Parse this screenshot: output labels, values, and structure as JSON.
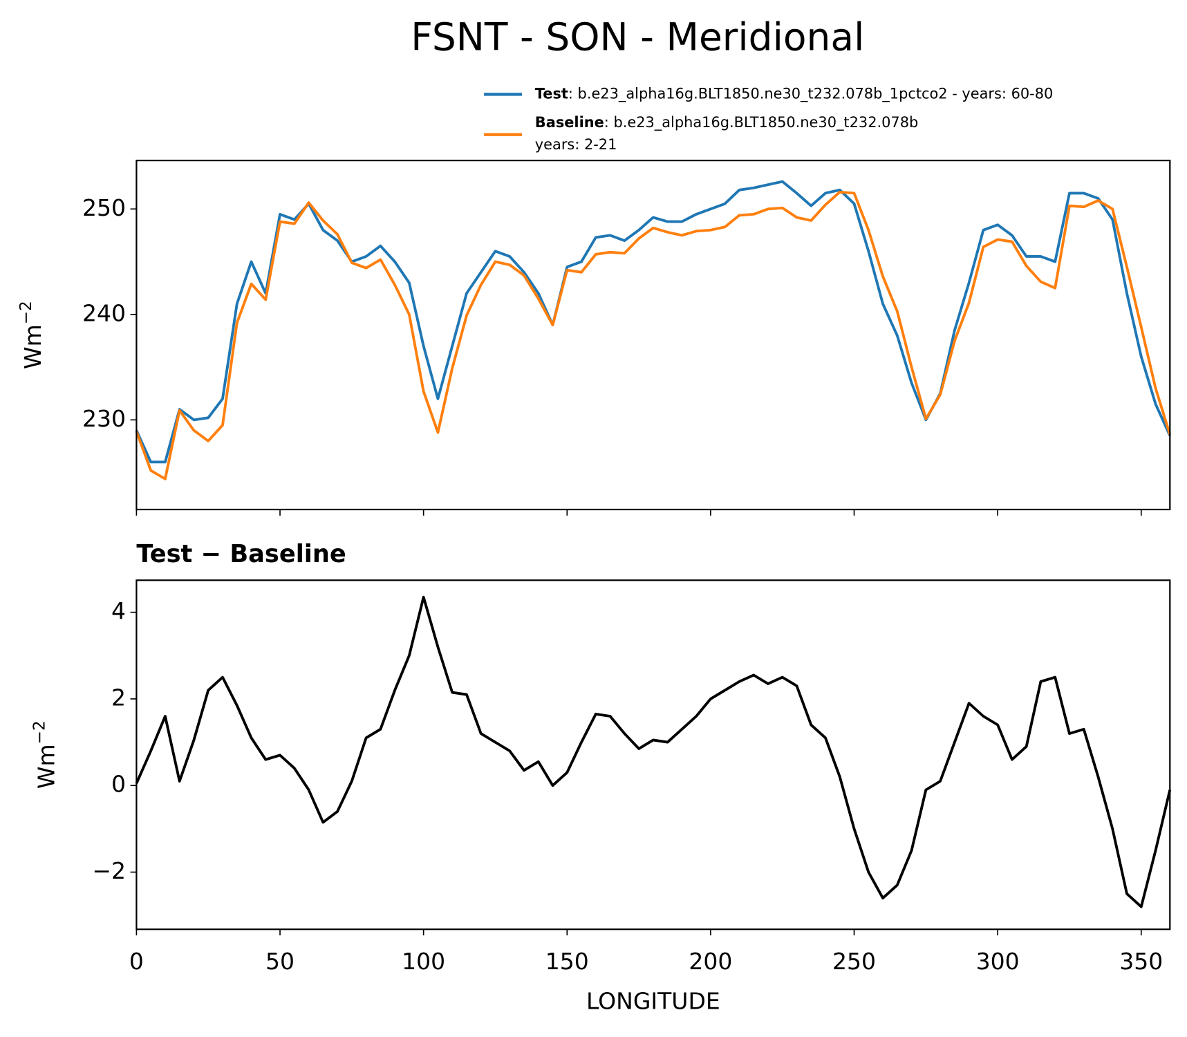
{
  "title": "FSNT - SON - Meridional",
  "chart_data": [
    {
      "type": "line",
      "ylabel": {
        "base": "Wm",
        "superscript": "−2"
      },
      "x": [
        0,
        5,
        10,
        15,
        20,
        25,
        30,
        35,
        40,
        45,
        50,
        55,
        60,
        65,
        70,
        75,
        80,
        85,
        90,
        95,
        100,
        105,
        110,
        115,
        120,
        125,
        130,
        135,
        140,
        145,
        150,
        155,
        160,
        165,
        170,
        175,
        180,
        185,
        190,
        195,
        200,
        205,
        210,
        215,
        220,
        225,
        230,
        235,
        240,
        245,
        250,
        255,
        260,
        265,
        270,
        275,
        280,
        285,
        290,
        295,
        300,
        305,
        310,
        315,
        320,
        325,
        330,
        335,
        340,
        345,
        350,
        355,
        360
      ],
      "xlim": [
        0,
        360
      ],
      "xticks": [
        0,
        50,
        100,
        150,
        200,
        250,
        300,
        350
      ],
      "xticklabels": false,
      "ylim": [
        221.5,
        254.6
      ],
      "yticks": [
        230,
        240,
        250
      ],
      "series": [
        {
          "name": "Test",
          "description": [
            ": b.e23_alpha16g.BLT1850.ne30_t232.078b_1pctco2 - years: 60-80"
          ],
          "color": "#1f77b4",
          "values": [
            229,
            226,
            226,
            231,
            230,
            230.2,
            232,
            241,
            245,
            242,
            249.5,
            249,
            250.5,
            248,
            247,
            245,
            245.5,
            246.5,
            245,
            243,
            237,
            232,
            237,
            242,
            244,
            246,
            245.5,
            244,
            242,
            239,
            244.5,
            245,
            247.3,
            247.5,
            247,
            248,
            249.2,
            248.8,
            248.8,
            249.5,
            250,
            250.5,
            251.8,
            252,
            252.3,
            252.6,
            251.5,
            250.3,
            251.5,
            251.8,
            250.5,
            246,
            241,
            238,
            233.5,
            230,
            232.5,
            238.5,
            243,
            248,
            248.5,
            247.5,
            245.5,
            245.5,
            245,
            251.5,
            251.5,
            251,
            249,
            242,
            236,
            231.5,
            228.5
          ]
        },
        {
          "name": "Baseline",
          "description": [
            ": b.e23_alpha16g.BLT1850.ne30_t232.078b",
            "years: 2-21"
          ],
          "color": "#ff7f0e",
          "values": [
            228.9,
            225.2,
            224.4,
            230.9,
            229.0,
            228.0,
            229.5,
            239.2,
            242.9,
            241.4,
            248.8,
            248.6,
            250.6,
            248.9,
            247.6,
            244.9,
            244.4,
            245.2,
            242.8,
            240.0,
            232.7,
            228.8,
            234.9,
            239.9,
            242.8,
            245.0,
            244.7,
            243.7,
            241.5,
            239.0,
            244.2,
            244.0,
            245.7,
            245.9,
            245.8,
            247.2,
            248.2,
            247.8,
            247.5,
            247.9,
            248.0,
            248.3,
            249.4,
            249.5,
            250.0,
            250.1,
            249.2,
            248.9,
            250.4,
            251.6,
            251.5,
            248.0,
            243.6,
            240.3,
            235.0,
            230.1,
            232.4,
            237.5,
            241.1,
            246.4,
            247.1,
            246.9,
            244.6,
            243.1,
            242.5,
            250.3,
            250.2,
            250.8,
            250.0,
            244.5,
            238.8,
            233.0,
            228.6
          ]
        }
      ]
    },
    {
      "type": "line",
      "title": "Test − Baseline",
      "ylabel": {
        "base": "Wm",
        "superscript": "−2"
      },
      "xlabel": "LONGITUDE",
      "x": [
        0,
        5,
        10,
        15,
        20,
        25,
        30,
        35,
        40,
        45,
        50,
        55,
        60,
        65,
        70,
        75,
        80,
        85,
        90,
        95,
        100,
        105,
        110,
        115,
        120,
        125,
        130,
        135,
        140,
        145,
        150,
        155,
        160,
        165,
        170,
        175,
        180,
        185,
        190,
        195,
        200,
        205,
        210,
        215,
        220,
        225,
        230,
        235,
        240,
        245,
        250,
        255,
        260,
        265,
        270,
        275,
        280,
        285,
        290,
        295,
        300,
        305,
        310,
        315,
        320,
        325,
        330,
        335,
        340,
        345,
        350,
        355,
        360
      ],
      "xlim": [
        0,
        360
      ],
      "xticks": [
        0,
        50,
        100,
        150,
        200,
        250,
        300,
        350
      ],
      "xticklabels": true,
      "ylim": [
        -3.32,
        4.74
      ],
      "yticks": [
        {
          "value": -2,
          "label": "−2"
        },
        0,
        2,
        4
      ],
      "series": [
        {
          "color": "#000000",
          "values": [
            0.05,
            0.8,
            1.6,
            0.1,
            1.05,
            2.2,
            2.5,
            1.85,
            1.1,
            0.6,
            0.7,
            0.4,
            -0.1,
            -0.85,
            -0.6,
            0.1,
            1.1,
            1.3,
            2.2,
            3.0,
            4.35,
            3.2,
            2.15,
            2.1,
            1.2,
            1.0,
            0.8,
            0.35,
            0.55,
            0.0,
            0.3,
            1.0,
            1.65,
            1.6,
            1.2,
            0.85,
            1.05,
            1.0,
            1.3,
            1.6,
            2.0,
            2.2,
            2.4,
            2.55,
            2.35,
            2.5,
            2.3,
            1.4,
            1.1,
            0.2,
            -1.0,
            -2.0,
            -2.6,
            -2.3,
            -1.5,
            -0.1,
            0.1,
            1.0,
            1.9,
            1.6,
            1.4,
            0.6,
            0.9,
            2.4,
            2.5,
            1.2,
            1.3,
            0.2,
            -1.0,
            -2.5,
            -2.8,
            -1.5,
            -0.1
          ]
        }
      ]
    }
  ]
}
